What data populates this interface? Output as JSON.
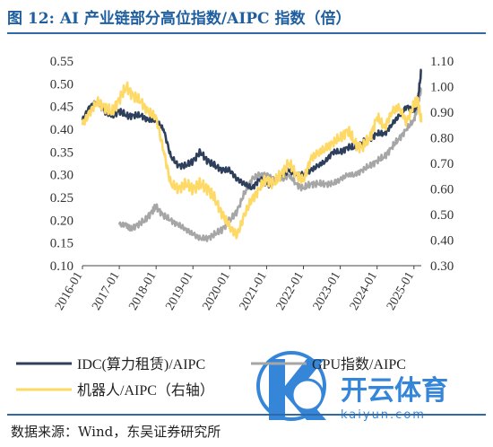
{
  "figure": {
    "label": "图 12:",
    "title": "AI 产业链部分高位指数/AIPC 指数（倍）"
  },
  "source": "数据来源：Wind，东吴证券研究所",
  "watermark": {
    "text_main": "开云体育",
    "text_url": "kaiyun.com"
  },
  "chart_data": {
    "type": "line",
    "x_ticks": [
      "2016-01",
      "2017-01",
      "2018-01",
      "2019-01",
      "2020-01",
      "2021-01",
      "2022-01",
      "2023-01",
      "2024-01",
      "2025-01"
    ],
    "left_axis": {
      "ticks": [
        "0.10",
        "0.15",
        "0.20",
        "0.25",
        "0.30",
        "0.35",
        "0.40",
        "0.45",
        "0.50",
        "0.55"
      ],
      "range": [
        0.1,
        0.55
      ]
    },
    "right_axis": {
      "ticks": [
        "0.30",
        "0.40",
        "0.50",
        "0.60",
        "0.70",
        "0.80",
        "0.90",
        "1.00",
        "1.10"
      ],
      "range": [
        0.3,
        1.1
      ]
    },
    "series": [
      {
        "name": "IDC(算力租赁)/AIPC",
        "axis": "left",
        "color": "#2e3f5c",
        "x": [
          2016.0,
          2016.2,
          2016.4,
          2016.6,
          2016.8,
          2017.0,
          2017.2,
          2017.4,
          2017.6,
          2017.8,
          2018.0,
          2018.2,
          2018.4,
          2018.6,
          2018.8,
          2019.0,
          2019.2,
          2019.4,
          2019.6,
          2019.8,
          2020.0,
          2020.2,
          2020.4,
          2020.6,
          2020.8,
          2021.0,
          2021.2,
          2021.4,
          2021.6,
          2021.8,
          2022.0,
          2022.2,
          2022.4,
          2022.6,
          2022.8,
          2023.0,
          2023.2,
          2023.4,
          2023.6,
          2023.8,
          2024.0,
          2024.2,
          2024.4,
          2024.6,
          2024.8,
          2025.0,
          2025.1,
          2025.2
        ],
        "y": [
          0.42,
          0.45,
          0.46,
          0.44,
          0.43,
          0.44,
          0.43,
          0.43,
          0.43,
          0.42,
          0.42,
          0.4,
          0.34,
          0.32,
          0.32,
          0.33,
          0.35,
          0.33,
          0.32,
          0.31,
          0.31,
          0.29,
          0.28,
          0.27,
          0.29,
          0.28,
          0.28,
          0.3,
          0.31,
          0.3,
          0.3,
          0.31,
          0.32,
          0.33,
          0.35,
          0.35,
          0.36,
          0.36,
          0.37,
          0.38,
          0.39,
          0.39,
          0.41,
          0.43,
          0.45,
          0.44,
          0.46,
          0.53
        ]
      },
      {
        "name": "GPU指数/AIPC",
        "axis": "left",
        "color": "#a6a6a6",
        "x": [
          2017.0,
          2017.2,
          2017.3,
          2017.5,
          2017.7,
          2017.9,
          2018.0,
          2018.2,
          2018.4,
          2018.6,
          2018.8,
          2019.0,
          2019.2,
          2019.4,
          2019.6,
          2019.8,
          2020.0,
          2020.2,
          2020.4,
          2020.6,
          2020.8,
          2021.0,
          2021.2,
          2021.4,
          2021.6,
          2021.8,
          2022.0,
          2022.2,
          2022.4,
          2022.6,
          2022.8,
          2023.0,
          2023.2,
          2023.4,
          2023.6,
          2023.8,
          2024.0,
          2024.2,
          2024.4,
          2024.6,
          2024.8,
          2025.0,
          2025.1,
          2025.2
        ],
        "y": [
          0.19,
          0.19,
          0.18,
          0.19,
          0.2,
          0.22,
          0.23,
          0.21,
          0.2,
          0.19,
          0.18,
          0.17,
          0.16,
          0.16,
          0.17,
          0.18,
          0.2,
          0.22,
          0.26,
          0.29,
          0.3,
          0.3,
          0.29,
          0.29,
          0.3,
          0.28,
          0.27,
          0.28,
          0.28,
          0.28,
          0.28,
          0.29,
          0.3,
          0.3,
          0.31,
          0.32,
          0.33,
          0.34,
          0.36,
          0.38,
          0.4,
          0.42,
          0.45,
          0.49
        ]
      },
      {
        "name": "机器人/AIPC（右轴）",
        "axis": "right",
        "color": "#ffd966",
        "x": [
          2016.0,
          2016.2,
          2016.4,
          2016.6,
          2016.8,
          2017.0,
          2017.2,
          2017.4,
          2017.6,
          2017.8,
          2018.0,
          2018.2,
          2018.4,
          2018.6,
          2018.8,
          2019.0,
          2019.2,
          2019.4,
          2019.6,
          2019.8,
          2020.0,
          2020.2,
          2020.4,
          2020.6,
          2020.8,
          2021.0,
          2021.2,
          2021.4,
          2021.6,
          2021.8,
          2022.0,
          2022.2,
          2022.4,
          2022.6,
          2022.8,
          2023.0,
          2023.2,
          2023.4,
          2023.6,
          2023.8,
          2024.0,
          2024.2,
          2024.4,
          2024.6,
          2024.8,
          2025.0,
          2025.1,
          2025.2
        ],
        "y": [
          0.85,
          0.9,
          0.94,
          0.92,
          0.9,
          0.95,
          1.0,
          0.96,
          0.94,
          0.9,
          0.88,
          0.75,
          0.62,
          0.6,
          0.62,
          0.6,
          0.62,
          0.6,
          0.56,
          0.5,
          0.45,
          0.42,
          0.5,
          0.56,
          0.6,
          0.64,
          0.62,
          0.66,
          0.7,
          0.66,
          0.63,
          0.72,
          0.74,
          0.76,
          0.78,
          0.8,
          0.83,
          0.78,
          0.76,
          0.8,
          0.88,
          0.84,
          0.9,
          0.92,
          0.86,
          0.93,
          0.95,
          0.86
        ]
      }
    ]
  }
}
